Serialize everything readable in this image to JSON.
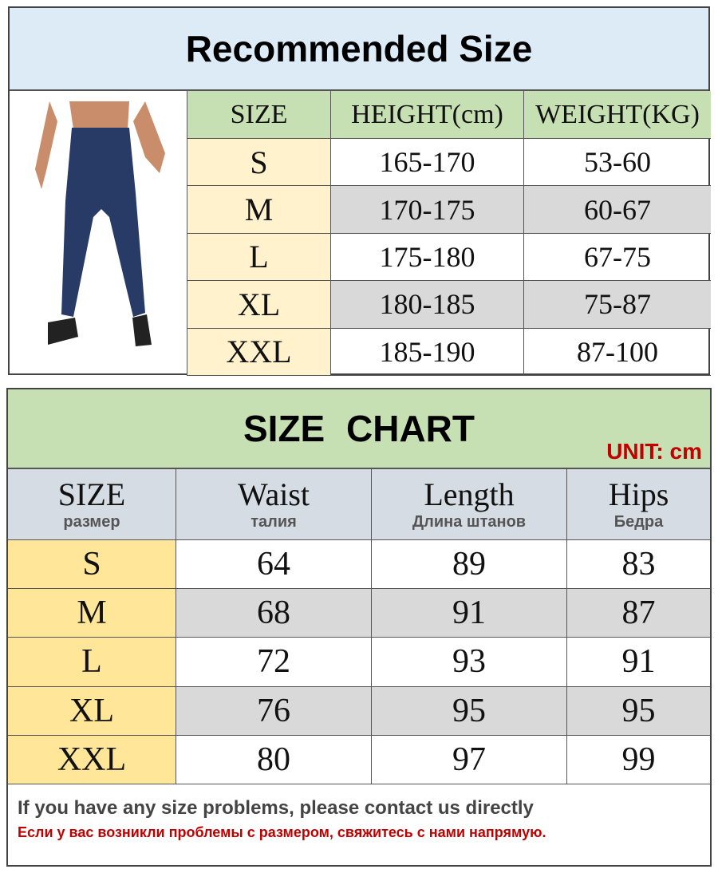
{
  "recommended": {
    "title": "Recommended Size",
    "headers": [
      "SIZE",
      "HEIGHT(cm)",
      "WEIGHT(KG)"
    ],
    "rows": [
      [
        "S",
        "165-170",
        "53-60"
      ],
      [
        "M",
        "170-175",
        "60-67"
      ],
      [
        "L",
        "175-180",
        "67-75"
      ],
      [
        "XL",
        "180-185",
        "75-87"
      ],
      [
        "XXL",
        "185-190",
        "87-100"
      ]
    ]
  },
  "chart": {
    "title": "SIZE  CHART",
    "unit": "UNIT: cm",
    "headers": [
      {
        "en": "SIZE",
        "ru": "размер"
      },
      {
        "en": "Waist",
        "ru": "талия"
      },
      {
        "en": "Length",
        "ru": "Длина штанов"
      },
      {
        "en": "Hips",
        "ru": "Бедра"
      }
    ],
    "rows": [
      [
        "S",
        "64",
        "89",
        "83"
      ],
      [
        "M",
        "68",
        "91",
        "87"
      ],
      [
        "L",
        "72",
        "93",
        "91"
      ],
      [
        "XL",
        "76",
        "95",
        "95"
      ],
      [
        "XXL",
        "80",
        "97",
        "99"
      ]
    ]
  },
  "footer": {
    "en": "If you have any size problems, please contact us directly",
    "ru": "Если у вас возникли проблемы с размером, свяжитесь с нами напрямую."
  },
  "colors": {
    "header_blue": "#dcebf6",
    "header_green": "#c6e0b4",
    "size_cream": "#fff2cc",
    "size_yellow": "#ffe699",
    "row_gray": "#d9d9d9",
    "unit_red": "#c00000"
  }
}
